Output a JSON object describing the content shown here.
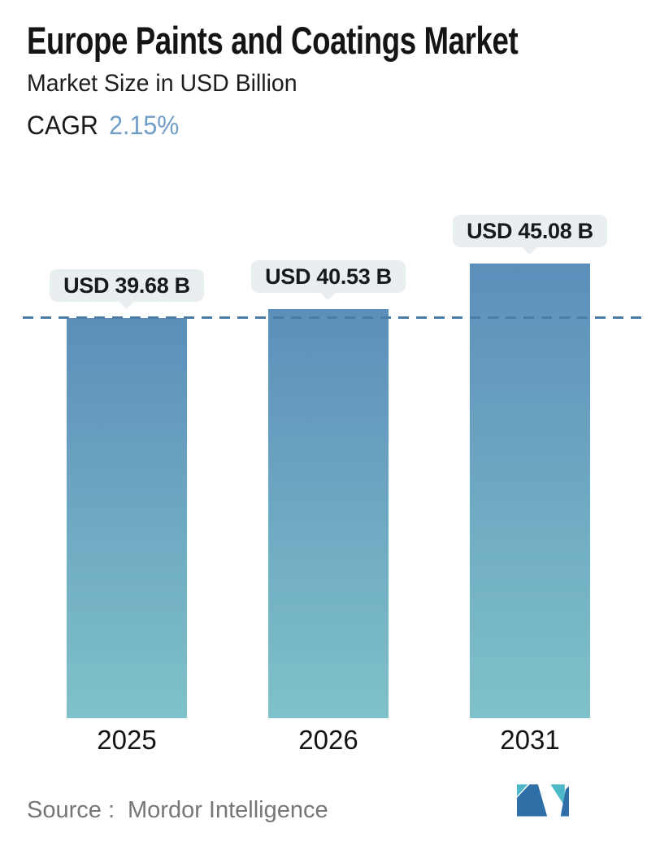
{
  "header": {
    "title": "Europe Paints and Coatings Market",
    "subtitle": "Market Size in USD Billion",
    "cagr_label": "CAGR",
    "cagr_value": "2.15%"
  },
  "chart_data": {
    "type": "bar",
    "title": "Europe Paints and Coatings Market",
    "subtitle": "Market Size in USD Billion",
    "cagr_percent": "2.15%",
    "unit": "USD Billion",
    "categories": [
      "2025",
      "2026",
      "2031"
    ],
    "values": [
      39.68,
      40.53,
      45.08
    ],
    "value_labels": [
      "USD 39.68 B",
      "USD 40.53 B",
      "USD 45.08 B"
    ],
    "ylim": [
      0,
      45.08
    ],
    "grid": false,
    "legend": "none",
    "reference_line": {
      "value": 39.68,
      "style": "dashed",
      "color": "#4d7ca6"
    },
    "colors": {
      "bar_gradient_top": "#5c8fbb",
      "bar_gradient_bottom": "#7fc2c9",
      "value_bubble_bg": "#e9eef0",
      "value_bubble_text": "#17191a",
      "cagr_accent": "#6e9dc8",
      "logo_navy": "#2e6fa7",
      "logo_teal": "#4db9c8"
    }
  },
  "footer": {
    "source_label": "Source :",
    "source_name": "Mordor Intelligence",
    "logo_name": "mordor-intelligence-logo"
  }
}
